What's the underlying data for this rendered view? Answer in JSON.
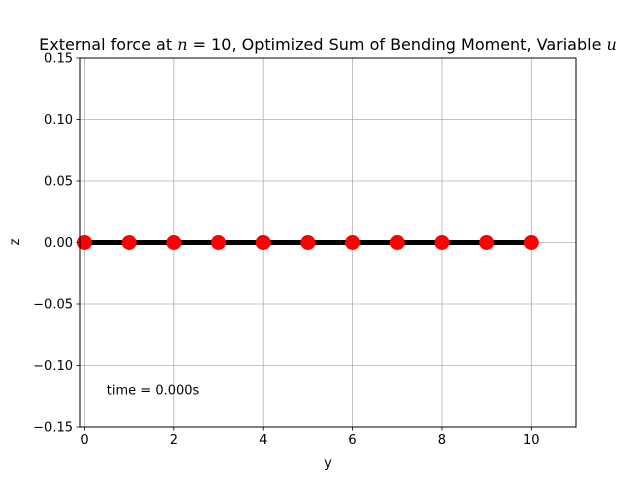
{
  "chart_data": {
    "type": "line",
    "title": {
      "prefix": "External force at ",
      "var_n": "n",
      "mid": " = 10, Optimized Sum of Bending Moment, Variable ",
      "var_u": "u"
    },
    "xlabel": "y",
    "ylabel": "z",
    "xlim": [
      -0.1,
      11
    ],
    "ylim": [
      -0.15,
      0.15
    ],
    "xticks": [
      0,
      2,
      4,
      6,
      8,
      10
    ],
    "xtick_labels": [
      "0",
      "2",
      "4",
      "6",
      "8",
      "10"
    ],
    "yticks": [
      -0.15,
      -0.1,
      -0.05,
      0.0,
      0.05,
      0.1,
      0.15
    ],
    "ytick_labels": [
      "−0.15",
      "−0.10",
      "−0.05",
      "0.00",
      "0.05",
      "0.10",
      "0.15"
    ],
    "grid": true,
    "series": [
      {
        "x": [
          0,
          1,
          2,
          3,
          4,
          5,
          6,
          7,
          8,
          9,
          10
        ],
        "y": [
          0,
          0,
          0,
          0,
          0,
          0,
          0,
          0,
          0,
          0,
          0
        ],
        "line_color": "#000000",
        "marker_color": "#ff0000",
        "marker": "circle"
      }
    ],
    "annotation": {
      "text": "time = 0.000s",
      "x": 0.5,
      "y": -0.12
    }
  }
}
